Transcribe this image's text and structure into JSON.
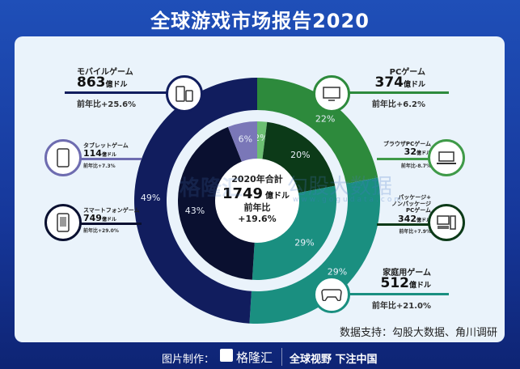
{
  "title": "全球游戏市场报告2020",
  "chart_data": {
    "type": "pie",
    "title": "全球游戏市场报告2020",
    "center": {
      "label": "2020年合計",
      "value": "1749",
      "unit": "億ドル",
      "yoy_label": "前年比",
      "yoy": "+19.6%"
    },
    "outer_ring": [
      {
        "name": "PCゲーム",
        "value": 374,
        "unit": "億ドル",
        "yoy": "前年比+6.2%",
        "pct": 22,
        "pct_label": "22%",
        "color": "#2d8a3c"
      },
      {
        "name": "家庭用ゲーム",
        "value": 512,
        "unit": "億ドル",
        "yoy": "前年比+21.0%",
        "pct": 29,
        "pct_label": "29%",
        "color": "#1a8f80"
      },
      {
        "name": "モバイルゲーム",
        "value": 863,
        "unit": "億ドル",
        "yoy": "前年比+25.6%",
        "pct": 49,
        "pct_label": "49%",
        "color": "#111d5e"
      }
    ],
    "inner_ring": [
      {
        "name": "ブラウザPCゲーム",
        "value": 32,
        "unit": "億ドル",
        "yoy": "前年比-8.7%",
        "pct": 2,
        "pct_label": "2%",
        "color": "#6cbf72"
      },
      {
        "name": "パッケージ+ノンパッケージPCゲーム",
        "value": 342,
        "unit": "億ドル",
        "yoy": "前年比+7.9%",
        "pct": 20,
        "pct_label": "20%",
        "color": "#0c3a18"
      },
      {
        "name": "家庭用ゲーム",
        "value": 512,
        "pct": 29,
        "pct_label": "29%",
        "color": "#1a8f80"
      },
      {
        "name": "スマートフォンゲーム",
        "value": 749,
        "unit": "億ドル",
        "yoy": "前年比+29.0%",
        "pct": 43,
        "pct_label": "43%",
        "color": "#0a1030"
      },
      {
        "name": "タブレットゲーム",
        "value": 114,
        "unit": "億ドル",
        "yoy": "前年比+7.3%",
        "pct": 6,
        "pct_label": "6%",
        "color": "#7a77b8"
      }
    ]
  },
  "labels": {
    "pc_pkg_lines": [
      "パッケージ+",
      "ノンパッケージ",
      "PCゲーム"
    ]
  },
  "watermark": {
    "left": "格隆汇",
    "right": "勾股大数据",
    "right_url": "www.gogudata.com"
  },
  "source": "数据支持：勾股大数据、角川调研",
  "footer": {
    "made_by": "图片制作：",
    "brand": "格隆汇",
    "slogan": "全球视野 下注中国"
  }
}
